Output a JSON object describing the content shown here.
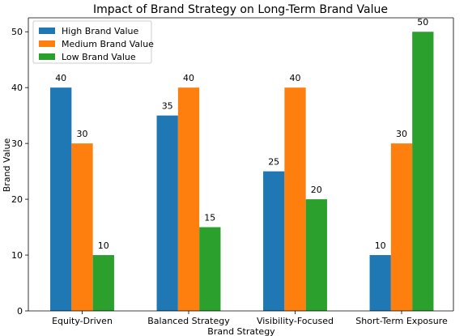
{
  "chart_data": {
    "type": "bar",
    "title": "Impact of Brand Strategy on Long-Term Brand Value",
    "xlabel": "Brand Strategy",
    "ylabel": "Brand Value",
    "categories": [
      "Equity-Driven",
      "Balanced Strategy",
      "Visibility-Focused",
      "Short-Term Exposure"
    ],
    "series": [
      {
        "name": "High Brand Value",
        "values": [
          40,
          35,
          25,
          10
        ],
        "color": "#1f77b4"
      },
      {
        "name": "Medium Brand Value",
        "values": [
          30,
          40,
          40,
          30
        ],
        "color": "#ff7f0e"
      },
      {
        "name": "Low Brand Value",
        "values": [
          10,
          15,
          20,
          50
        ],
        "color": "#2ca02c"
      }
    ],
    "ylim": [
      0,
      52.5
    ],
    "yticks": [
      0,
      10,
      20,
      30,
      40,
      50
    ],
    "grid": false,
    "legend_position": "top-left"
  }
}
